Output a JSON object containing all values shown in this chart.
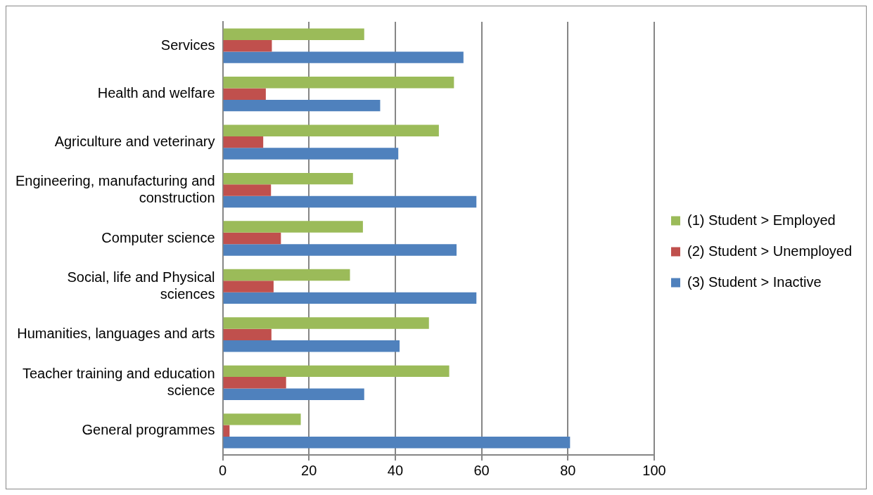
{
  "chart_data": {
    "type": "bar",
    "orientation": "horizontal",
    "categories": [
      "Services",
      "Health and welfare",
      "Agriculture and veterinary",
      "Engineering, manufacturing and construction",
      "Computer science",
      "Social, life and Physical sciences",
      "Humanities, languages and arts",
      "Teacher training and education science",
      "General programmes"
    ],
    "series": [
      {
        "name": "(1) Student > Employed",
        "color": "#9bbb59",
        "values": [
          32.8,
          53.6,
          50.1,
          30.2,
          32.5,
          29.5,
          47.8,
          52.5,
          18.1
        ]
      },
      {
        "name": "(2) Student > Unemployed",
        "color": "#c0504d",
        "values": [
          11.4,
          10,
          9.4,
          11.2,
          13.5,
          11.8,
          11.3,
          14.7,
          1.6
        ]
      },
      {
        "name": "(3) Student > Inactive",
        "color": "#4f81bd",
        "values": [
          55.8,
          36.5,
          40.7,
          58.8,
          54.2,
          58.8,
          41,
          32.8,
          80.5
        ]
      }
    ],
    "xlim": [
      0,
      100
    ],
    "xticks": [
      0,
      20,
      40,
      60,
      80,
      100
    ],
    "grid": "x",
    "legend": "right"
  }
}
